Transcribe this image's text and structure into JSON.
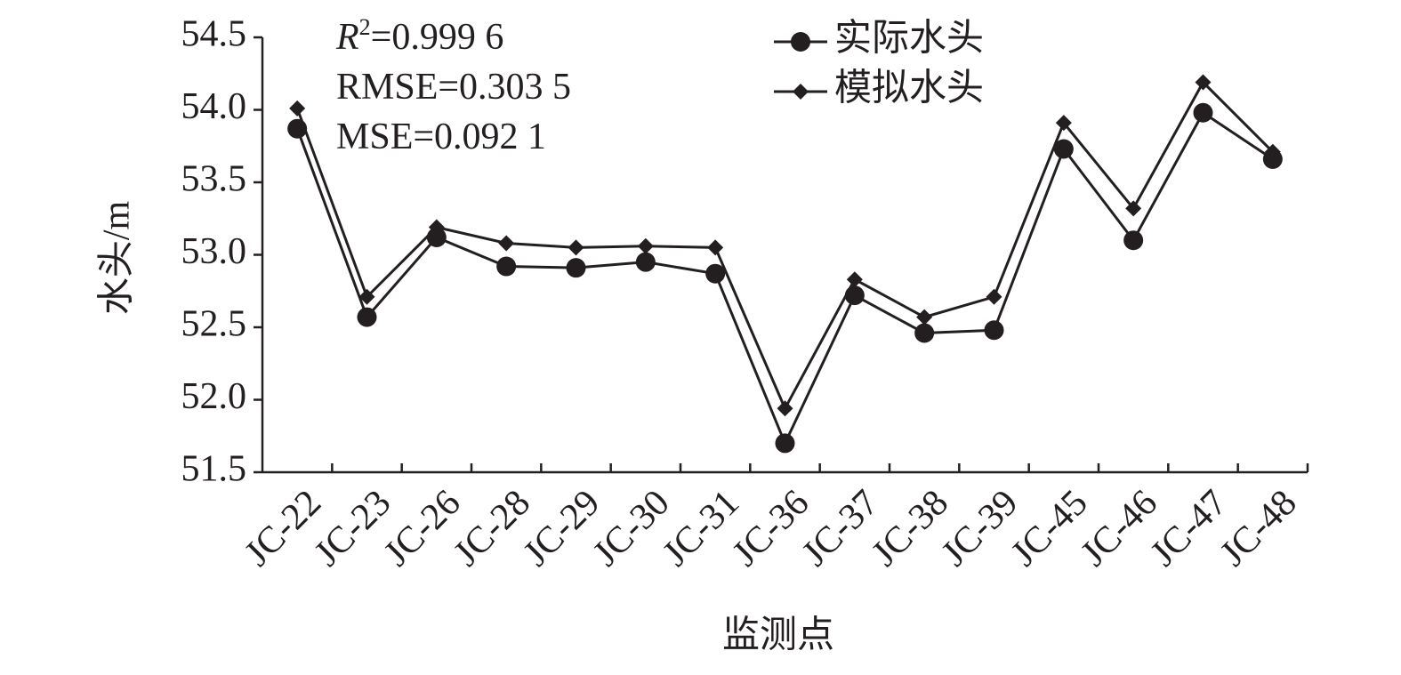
{
  "chart_data": {
    "type": "line",
    "annotations": [
      [
        "R",
        "2",
        "=0.999 6"
      ],
      [
        "RMSE=0.303 5"
      ],
      [
        "MSE=0.092 1"
      ]
    ],
    "y_label": "水头/m",
    "x_label": "监测点",
    "categories": [
      "JC-22",
      "JC-23",
      "JC-26",
      "JC-28",
      "JC-29",
      "JC-30",
      "JC-31",
      "JC-36",
      "JC-37",
      "JC-38",
      "JC-39",
      "JC-45",
      "JC-46",
      "JC-47",
      "JC-48"
    ],
    "series": [
      {
        "name": "实际水头",
        "color": "#231f20",
        "marker": "circle",
        "values": [
          53.87,
          52.57,
          53.12,
          52.92,
          52.91,
          52.95,
          52.87,
          51.7,
          52.72,
          52.46,
          52.48,
          53.73,
          53.1,
          53.98,
          53.66
        ]
      },
      {
        "name": "模拟水头",
        "color": "#231f20",
        "marker": "diamond",
        "values": [
          54.01,
          52.71,
          53.19,
          53.08,
          53.05,
          53.06,
          53.05,
          51.94,
          52.83,
          52.57,
          52.71,
          53.91,
          53.32,
          54.19,
          53.71
        ]
      }
    ],
    "ylim": [
      51.5,
      54.5
    ],
    "yticks": [
      51.5,
      {
        "value": 52,
        "label": "52.0"
      },
      52.5,
      {
        "value": 53,
        "label": "53.0"
      },
      53.5,
      {
        "value": 54,
        "label": "54.0"
      },
      54.5
    ],
    "grid": false,
    "legend": "top"
  }
}
